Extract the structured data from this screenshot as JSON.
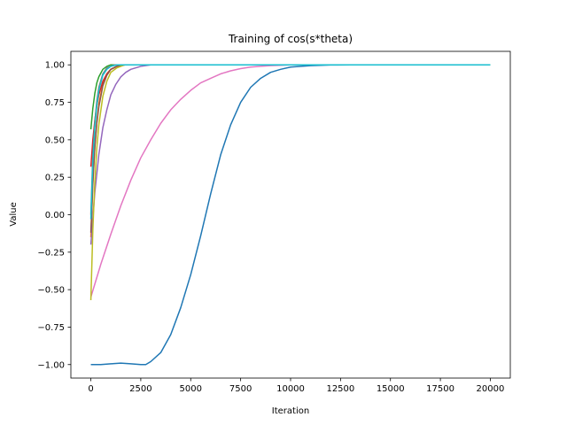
{
  "chart_data": {
    "type": "line",
    "title": "Training of cos(s*theta)",
    "xlabel": "Iteration",
    "ylabel": "Value",
    "xlim": [
      -1000,
      21000
    ],
    "ylim": [
      -1.09,
      1.09
    ],
    "x_ticks": [
      0,
      2500,
      5000,
      7500,
      10000,
      12500,
      15000,
      17500,
      20000
    ],
    "x_tick_labels": [
      "0",
      "2500",
      "5000",
      "7500",
      "10000",
      "12500",
      "15000",
      "17500",
      "20000"
    ],
    "y_ticks": [
      -1.0,
      -0.75,
      -0.5,
      -0.25,
      0.0,
      0.25,
      0.5,
      0.75,
      1.0
    ],
    "y_tick_labels": [
      "−1.00",
      "−0.75",
      "−0.50",
      "−0.25",
      "0.00",
      "0.25",
      "0.50",
      "0.75",
      "1.00"
    ],
    "grid": false,
    "legend": false,
    "series": [
      {
        "color": "#1f77b4",
        "x": [
          0,
          500,
          1000,
          1500,
          2000,
          2500,
          2750,
          3000,
          3500,
          4000,
          4500,
          5000,
          5500,
          6000,
          6500,
          7000,
          7500,
          8000,
          8500,
          9000,
          9500,
          10000,
          11000,
          12000,
          13000,
          15000,
          20000
        ],
        "y": [
          -1.0,
          -1.0,
          -0.995,
          -0.99,
          -0.995,
          -1.0,
          -1.0,
          -0.98,
          -0.92,
          -0.8,
          -0.62,
          -0.4,
          -0.14,
          0.14,
          0.4,
          0.6,
          0.75,
          0.85,
          0.91,
          0.95,
          0.97,
          0.985,
          0.995,
          0.999,
          1.0,
          1.0,
          1.0
        ]
      },
      {
        "color": "#ff7f0e",
        "x": [
          0,
          100,
          200,
          300,
          400,
          600,
          800,
          1000,
          1300,
          1700,
          2500,
          20000
        ],
        "y": [
          -0.15,
          0.2,
          0.45,
          0.62,
          0.74,
          0.87,
          0.94,
          0.97,
          0.99,
          1.0,
          1.0,
          1.0
        ]
      },
      {
        "color": "#2ca02c",
        "x": [
          0,
          100,
          200,
          300,
          400,
          600,
          800,
          1000,
          1300,
          20000
        ],
        "y": [
          0.57,
          0.71,
          0.81,
          0.88,
          0.92,
          0.97,
          0.99,
          1.0,
          1.0,
          1.0
        ]
      },
      {
        "color": "#d62728",
        "x": [
          0,
          100,
          200,
          300,
          400,
          600,
          800,
          1000,
          1300,
          1600,
          2000,
          20000
        ],
        "y": [
          0.32,
          0.5,
          0.63,
          0.73,
          0.8,
          0.89,
          0.94,
          0.97,
          0.99,
          1.0,
          1.0,
          1.0
        ]
      },
      {
        "color": "#9467bd",
        "x": [
          0,
          200,
          400,
          600,
          800,
          1000,
          1250,
          1500,
          1750,
          2000,
          2500,
          3000,
          20000
        ],
        "y": [
          -0.2,
          0.15,
          0.4,
          0.58,
          0.7,
          0.8,
          0.87,
          0.92,
          0.95,
          0.97,
          0.99,
          1.0,
          1.0
        ]
      },
      {
        "color": "#8c564b",
        "x": [
          0,
          100,
          200,
          300,
          400,
          600,
          800,
          1000,
          1300,
          1700,
          2200,
          20000
        ],
        "y": [
          -0.12,
          0.22,
          0.45,
          0.61,
          0.72,
          0.86,
          0.93,
          0.97,
          0.99,
          1.0,
          1.0,
          1.0
        ]
      },
      {
        "color": "#e377c2",
        "x": [
          0,
          500,
          1000,
          1500,
          2000,
          2500,
          3000,
          3500,
          4000,
          4500,
          5000,
          5500,
          6000,
          6500,
          7000,
          7500,
          8000,
          8500,
          9000,
          10000,
          20000
        ],
        "y": [
          -0.55,
          -0.33,
          -0.13,
          0.06,
          0.23,
          0.38,
          0.5,
          0.61,
          0.7,
          0.77,
          0.83,
          0.88,
          0.91,
          0.94,
          0.96,
          0.975,
          0.985,
          0.99,
          0.995,
          1.0,
          1.0
        ]
      },
      {
        "color": "#7f7f7f",
        "x": [
          0,
          100,
          200,
          300,
          400,
          600,
          800,
          1000,
          1200,
          20000
        ],
        "y": [
          0.0,
          0.4,
          0.62,
          0.76,
          0.85,
          0.94,
          0.98,
          0.99,
          1.0,
          1.0
        ]
      },
      {
        "color": "#bcbd22",
        "x": [
          0,
          100,
          200,
          300,
          400,
          600,
          800,
          1000,
          1300,
          1700,
          2200,
          20000
        ],
        "y": [
          -0.57,
          -0.1,
          0.22,
          0.45,
          0.6,
          0.79,
          0.89,
          0.95,
          0.98,
          1.0,
          1.0,
          1.0
        ]
      },
      {
        "color": "#17becf",
        "x": [
          0,
          100,
          200,
          300,
          400,
          600,
          800,
          1000,
          1300,
          20000
        ],
        "y": [
          -0.03,
          0.35,
          0.58,
          0.73,
          0.83,
          0.93,
          0.97,
          0.99,
          1.0,
          1.0
        ]
      }
    ]
  }
}
